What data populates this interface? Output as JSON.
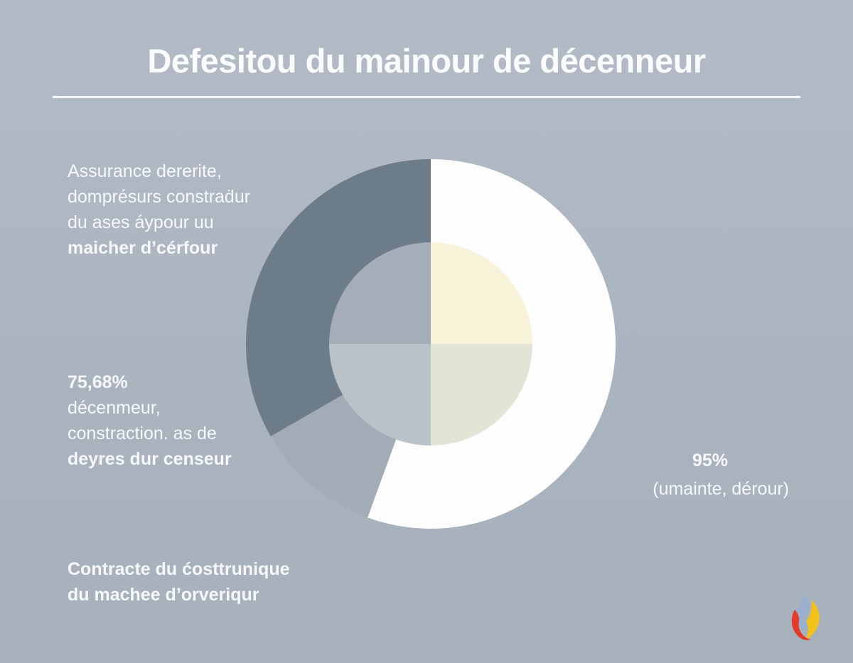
{
  "title": "Defesitou du mainour de décenneur",
  "labels": {
    "top_left": [
      {
        "text": "Assurance dererite,",
        "strong": false
      },
      {
        "text": "domprésurs constraḋur",
        "strong": false
      },
      {
        "text": "du ases áypour uu",
        "strong": false
      },
      {
        "text": "maicher d’cérfour",
        "strong": true
      }
    ],
    "mid_left": [
      {
        "text": "75,68%",
        "strong": true
      },
      {
        "text": "décenmeur,",
        "strong": false
      },
      {
        "text": "constraction. as de",
        "strong": false
      },
      {
        "text": "deyres dur censeur",
        "strong": true
      }
    ],
    "bottom_left": [
      {
        "text": "Contracte du ćosttrunique",
        "strong": true
      },
      {
        "text": "du machee d’orveriqur",
        "strong": true
      }
    ],
    "right": {
      "value": "95%",
      "sub": "(umainte, dérour)"
    }
  },
  "chart_data": {
    "type": "pie",
    "note_values": "",
    "outer_ring": [
      {
        "label": "",
        "start_deg": 0,
        "end_deg": 200,
        "color": "#fdfdfd"
      },
      {
        "label": "",
        "start_deg": 200,
        "end_deg": 240,
        "color": "#a2abb6"
      },
      {
        "label": "",
        "start_deg": 240,
        "end_deg": 360,
        "color": "#6d7c89"
      }
    ],
    "inner_quadrants": [
      {
        "label": "",
        "quadrant": "top-right",
        "color": "#f7f3d9"
      },
      {
        "label": "",
        "quadrant": "bottom-right",
        "color": "#e4e4d6"
      },
      {
        "label": "",
        "quadrant": "bottom-left",
        "color": "#b9c1c9"
      },
      {
        "label": "",
        "quadrant": "top-left",
        "color": "#a5aeb8"
      }
    ]
  },
  "colors": {
    "background": "#b0bac4",
    "text": "#f7f8f9"
  },
  "logo_icon": "flame-logo-icon"
}
